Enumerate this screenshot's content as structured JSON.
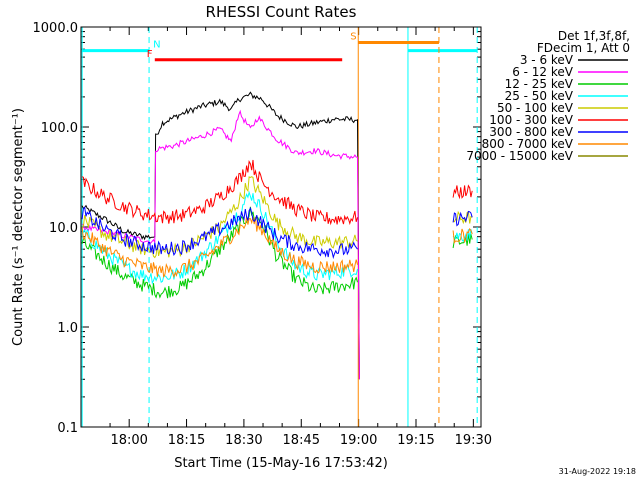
{
  "chart_data": {
    "type": "line",
    "title": "RHESSI Count Rates",
    "xlabel": "Start Time (15-May-16 17:53:42)",
    "ylabel": "Count Rate (s⁻¹ detector segment⁻¹)",
    "yscale": "log",
    "ylim": [
      0.1,
      1000
    ],
    "xlim_min": [
      -6.3,
      98.3
    ],
    "x_unit": "minutes after 17:53:42",
    "x_ticks": [
      {
        "t": 6.3,
        "label": "18:00"
      },
      {
        "t": 21.3,
        "label": "18:15"
      },
      {
        "t": 36.3,
        "label": "18:30"
      },
      {
        "t": 51.3,
        "label": "18:45"
      },
      {
        "t": 66.3,
        "label": "19:00"
      },
      {
        "t": 81.3,
        "label": "19:15"
      },
      {
        "t": 96.3,
        "label": "19:30"
      }
    ],
    "y_ticks": [
      {
        "v": 0.1,
        "label": "0.1"
      },
      {
        "v": 1,
        "label": "1.0"
      },
      {
        "v": 10,
        "label": "10.0"
      },
      {
        "v": 100,
        "label": "100.0"
      },
      {
        "v": 1000,
        "label": "1000.0"
      }
    ],
    "legend_header": [
      "Det 1f,3f,8f,",
      "FDecim 1, Att 0"
    ],
    "legend_position": "right",
    "series": [
      {
        "name": "3 - 6 keV",
        "color": "#000000",
        "data": [
          [
            -6,
            16
          ],
          [
            0,
            12
          ],
          [
            5,
            9
          ],
          [
            10,
            8
          ],
          [
            13,
            8
          ],
          [
            13.2,
            80
          ],
          [
            15,
            110
          ],
          [
            20,
            135
          ],
          [
            25,
            160
          ],
          [
            30,
            180
          ],
          [
            33,
            150
          ],
          [
            35,
            190
          ],
          [
            38,
            210
          ],
          [
            41,
            190
          ],
          [
            45,
            130
          ],
          [
            50,
            100
          ],
          [
            55,
            110
          ],
          [
            60,
            120
          ],
          [
            66,
            118
          ],
          [
            66.5,
            0.3
          ]
        ],
        "gap": [
          [
            88,
            90
          ],
          [
            95,
            98
          ]
        ]
      },
      {
        "name": "6 - 12 keV",
        "color": "#ff00ff",
        "data": [
          [
            -6,
            10
          ],
          [
            13,
            7
          ],
          [
            13.2,
            60
          ],
          [
            18,
            65
          ],
          [
            25,
            80
          ],
          [
            30,
            95
          ],
          [
            33,
            72
          ],
          [
            35,
            140
          ],
          [
            38,
            95
          ],
          [
            40,
            125
          ],
          [
            45,
            75
          ],
          [
            50,
            55
          ],
          [
            55,
            58
          ],
          [
            60,
            52
          ],
          [
            66,
            50
          ],
          [
            66.5,
            0.3
          ]
        ]
      },
      {
        "name": "12 - 25 keV",
        "color": "#00cc00",
        "data": [
          [
            -6,
            7
          ],
          [
            0,
            4.5
          ],
          [
            5,
            3.2
          ],
          [
            10,
            2.6
          ],
          [
            15,
            2.2
          ],
          [
            20,
            2.5
          ],
          [
            25,
            3.5
          ],
          [
            30,
            6
          ],
          [
            35,
            10
          ],
          [
            38,
            14
          ],
          [
            41,
            11
          ],
          [
            45,
            5
          ],
          [
            50,
            3
          ],
          [
            55,
            2.3
          ],
          [
            60,
            2.5
          ],
          [
            66,
            2.8
          ]
        ],
        "segment2": [
          [
            91,
            7
          ],
          [
            96,
            7.5
          ]
        ]
      },
      {
        "name": "25 - 50 keV",
        "color": "#00ffff",
        "data": [
          [
            -6,
            9
          ],
          [
            0,
            5.5
          ],
          [
            5,
            4
          ],
          [
            10,
            3.3
          ],
          [
            15,
            3.1
          ],
          [
            20,
            3.5
          ],
          [
            25,
            5
          ],
          [
            30,
            8
          ],
          [
            35,
            14
          ],
          [
            38,
            22
          ],
          [
            41,
            15
          ],
          [
            45,
            7
          ],
          [
            50,
            4
          ],
          [
            55,
            3.3
          ],
          [
            60,
            3.5
          ],
          [
            66,
            3.8
          ]
        ],
        "segment2": [
          [
            91,
            8
          ],
          [
            96,
            8.5
          ]
        ]
      },
      {
        "name": "50 - 100 keV",
        "color": "#cccc00",
        "data": [
          [
            -6,
            12
          ],
          [
            0,
            8.5
          ],
          [
            5,
            7
          ],
          [
            10,
            6
          ],
          [
            15,
            5.6
          ],
          [
            20,
            6
          ],
          [
            25,
            7.5
          ],
          [
            30,
            10
          ],
          [
            35,
            18
          ],
          [
            38,
            30
          ],
          [
            41,
            20
          ],
          [
            45,
            11
          ],
          [
            50,
            8
          ],
          [
            55,
            7
          ],
          [
            60,
            7
          ],
          [
            66,
            7.2
          ]
        ],
        "segment2": [
          [
            91,
            12
          ],
          [
            96,
            12.5
          ]
        ]
      },
      {
        "name": "100 - 300 keV",
        "color": "#ff0000",
        "data": [
          [
            -6,
            28
          ],
          [
            0,
            20
          ],
          [
            5,
            16
          ],
          [
            10,
            13.5
          ],
          [
            15,
            12.5
          ],
          [
            20,
            13
          ],
          [
            25,
            15
          ],
          [
            30,
            20
          ],
          [
            35,
            30
          ],
          [
            38,
            45
          ],
          [
            41,
            28
          ],
          [
            45,
            20
          ],
          [
            50,
            15
          ],
          [
            55,
            12.5
          ],
          [
            60,
            12
          ],
          [
            66,
            12.5
          ]
        ],
        "segment2": [
          [
            91,
            22
          ],
          [
            96,
            23
          ]
        ]
      },
      {
        "name": "300 - 800 keV",
        "color": "#0000ff",
        "data": [
          [
            -6,
            14
          ],
          [
            0,
            9.5
          ],
          [
            5,
            7.5
          ],
          [
            10,
            6.5
          ],
          [
            15,
            6
          ],
          [
            20,
            6.3
          ],
          [
            25,
            7.5
          ],
          [
            30,
            9.5
          ],
          [
            35,
            12
          ],
          [
            38,
            14
          ],
          [
            41,
            11
          ],
          [
            45,
            8
          ],
          [
            50,
            6.5
          ],
          [
            55,
            6
          ],
          [
            60,
            5.8
          ],
          [
            66,
            6
          ]
        ],
        "segment2": [
          [
            91,
            12
          ],
          [
            96,
            12.5
          ]
        ]
      },
      {
        "name": "800 - 7000 keV",
        "color": "#ff8800",
        "data": [
          [
            -6,
            9
          ],
          [
            0,
            6
          ],
          [
            5,
            4.7
          ],
          [
            10,
            4
          ],
          [
            15,
            3.6
          ],
          [
            20,
            3.8
          ],
          [
            25,
            4.6
          ],
          [
            30,
            6.5
          ],
          [
            35,
            9.5
          ],
          [
            38,
            12
          ],
          [
            41,
            9.5
          ],
          [
            45,
            6
          ],
          [
            50,
            4.5
          ],
          [
            55,
            4
          ],
          [
            60,
            4
          ],
          [
            66,
            4.2
          ]
        ],
        "segment2": [
          [
            91,
            8
          ],
          [
            96,
            8.5
          ]
        ]
      },
      {
        "name": "7000 - 15000 keV",
        "color": "#888800",
        "data": []
      }
    ],
    "annotations": [
      {
        "label": "N",
        "color": "#00ffff",
        "t_start": -6,
        "t_end": 11.5,
        "level": 580,
        "solid_line_t": -6,
        "dashed_lines_t": [
          11.5,
          97.3
        ]
      },
      {
        "label": "N",
        "color": "#00ffff",
        "t_start": 79.2,
        "t_end": 97.3,
        "level": 580,
        "solid_line_t": 79.2
      },
      {
        "label": "F",
        "color": "#ff0000",
        "t_start": 13,
        "t_end": 62,
        "level": 470
      },
      {
        "label": "S",
        "color": "#ff8800",
        "t_start": 66.2,
        "t_end": 87.3,
        "level": 700,
        "solid_line_t": 66.2,
        "dashed_lines_t": [
          87.3
        ]
      }
    ],
    "footer": "31-Aug-2022 19:18"
  }
}
